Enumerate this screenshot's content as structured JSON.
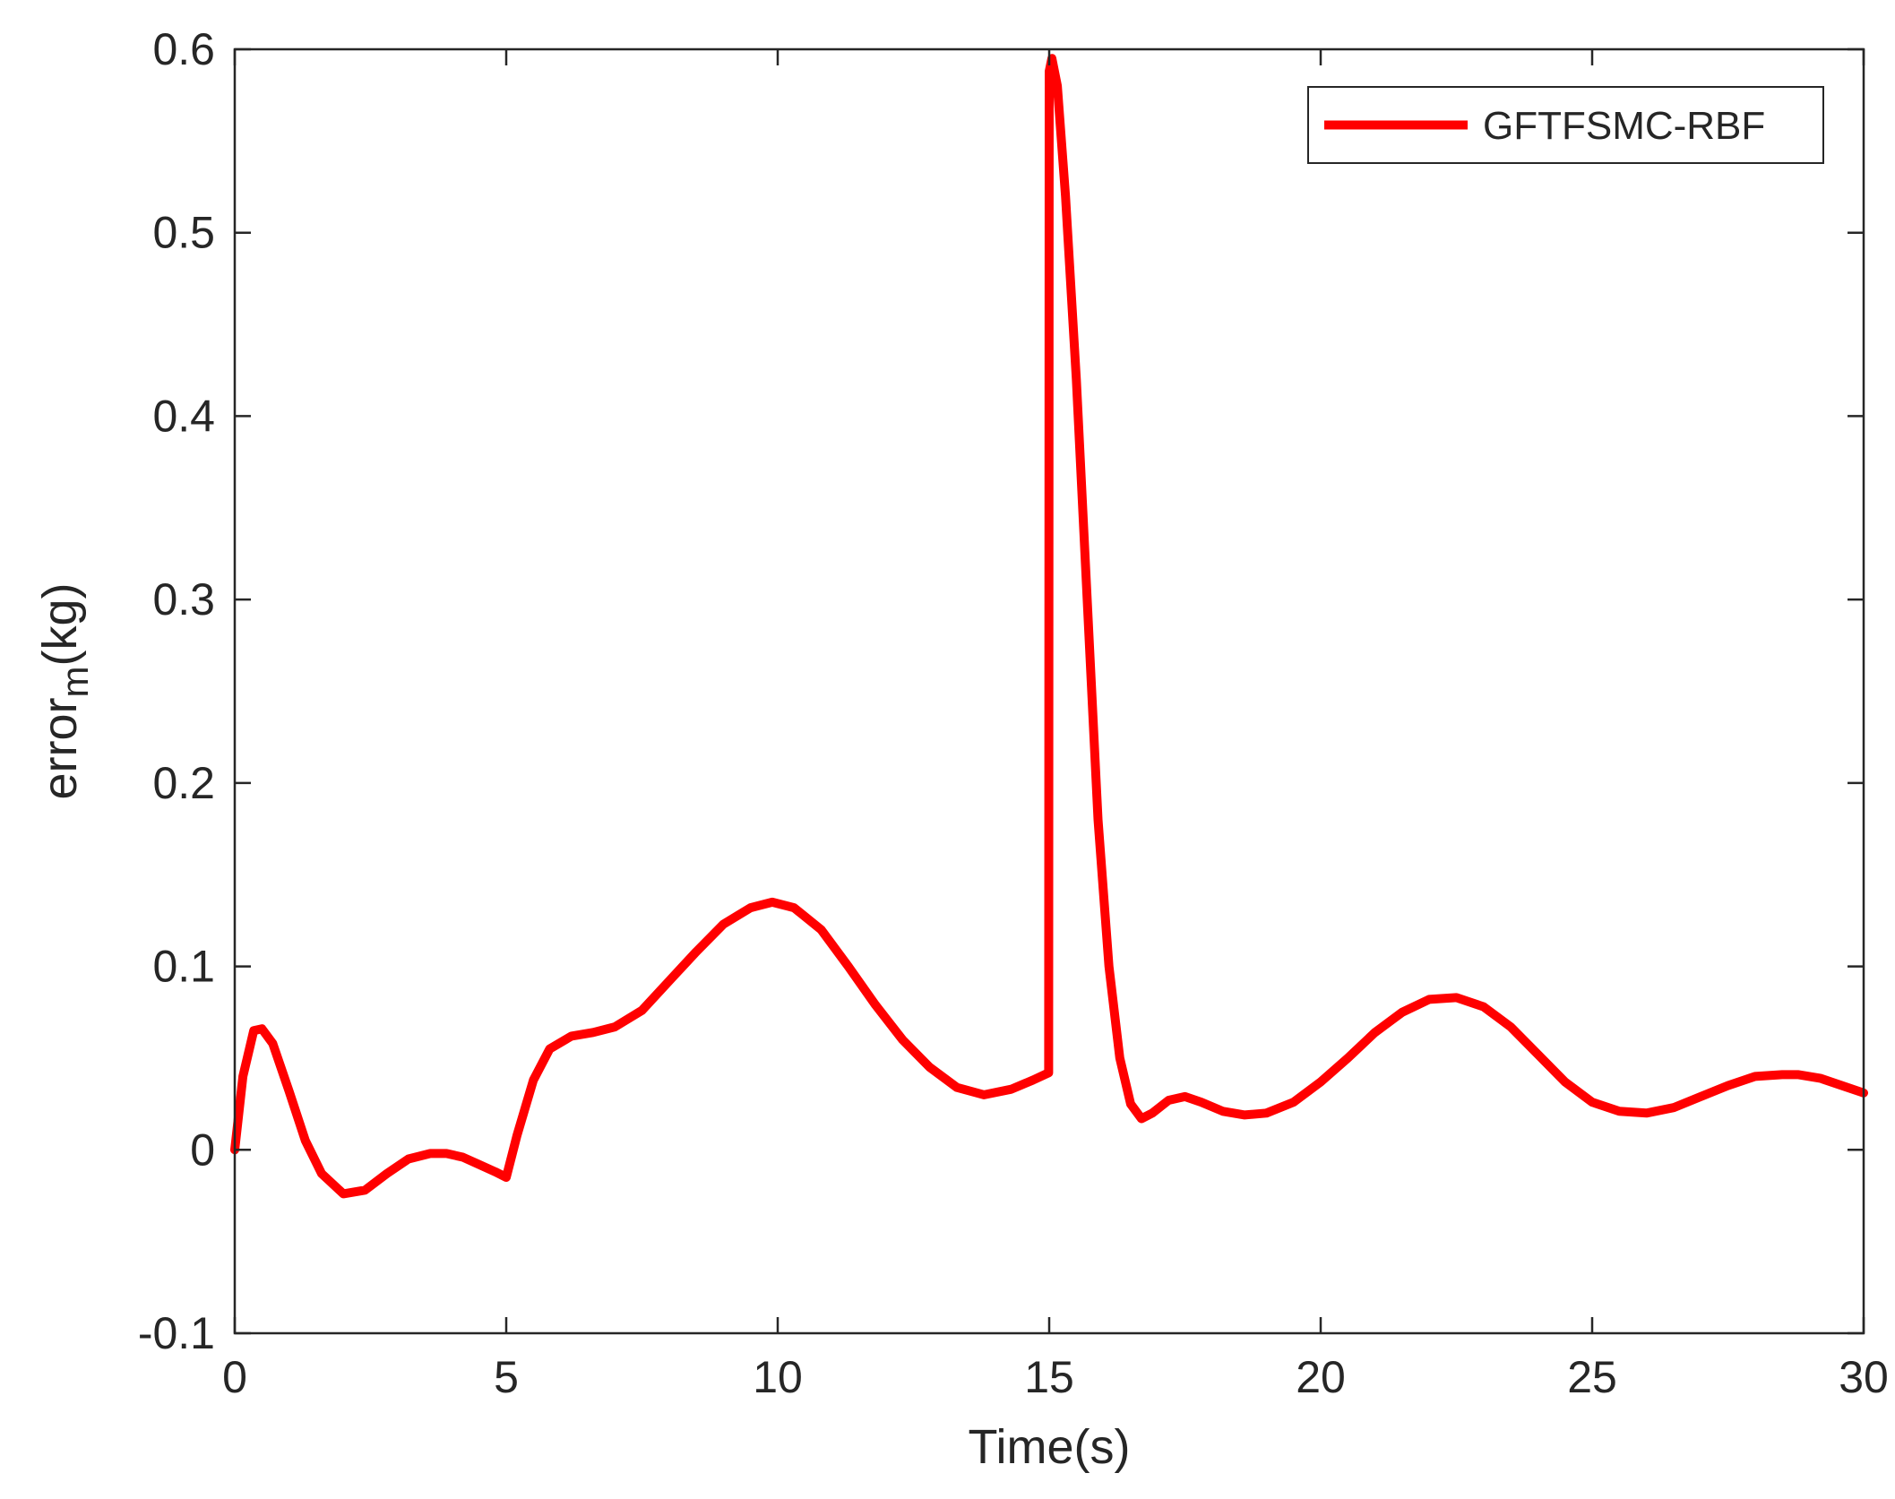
{
  "chart_data": {
    "type": "line",
    "title": "",
    "xlabel": "Time(s)",
    "ylabel": {
      "main": "error",
      "subscript": "m",
      "suffix": "(kg)"
    },
    "xlim": [
      0,
      30
    ],
    "ylim": [
      -0.1,
      0.6
    ],
    "xticks": [
      0,
      5,
      10,
      15,
      20,
      25,
      30
    ],
    "yticks": [
      -0.1,
      0,
      0.1,
      0.2,
      0.3,
      0.4,
      0.5,
      0.6
    ],
    "xtick_labels": [
      "0",
      "5",
      "10",
      "15",
      "20",
      "25",
      "30"
    ],
    "ytick_labels": [
      "-0.1",
      "0",
      "0.1",
      "0.2",
      "0.3",
      "0.4",
      "0.5",
      "0.6"
    ],
    "grid": false,
    "legend_position": "top-right",
    "series": [
      {
        "name": "GFTFSMC-RBF",
        "color": "#ff0000",
        "x": [
          0,
          0.15,
          0.35,
          0.5,
          0.7,
          1.0,
          1.3,
          1.6,
          2.0,
          2.4,
          2.8,
          3.2,
          3.6,
          3.9,
          4.2,
          4.5,
          4.8,
          5.0,
          5.2,
          5.5,
          5.8,
          6.2,
          6.6,
          7.0,
          7.5,
          8.0,
          8.5,
          9.0,
          9.5,
          9.9,
          10.3,
          10.8,
          11.3,
          11.8,
          12.3,
          12.8,
          13.3,
          13.8,
          14.3,
          14.7,
          14.99,
          15.0,
          15.05,
          15.15,
          15.3,
          15.5,
          15.7,
          15.9,
          16.1,
          16.3,
          16.5,
          16.7,
          16.9,
          17.2,
          17.5,
          17.8,
          18.2,
          18.6,
          19.0,
          19.5,
          20.0,
          20.5,
          21.0,
          21.5,
          22.0,
          22.5,
          23.0,
          23.5,
          24.0,
          24.5,
          25.0,
          25.5,
          26.0,
          26.5,
          27.0,
          27.5,
          28.0,
          28.5,
          28.8,
          29.2,
          29.6,
          30.0
        ],
        "y": [
          0.0,
          0.04,
          0.065,
          0.066,
          0.058,
          0.032,
          0.005,
          -0.013,
          -0.024,
          -0.022,
          -0.013,
          -0.005,
          -0.002,
          -0.002,
          -0.004,
          -0.008,
          -0.012,
          -0.015,
          0.008,
          0.038,
          0.055,
          0.062,
          0.064,
          0.067,
          0.076,
          0.092,
          0.108,
          0.123,
          0.132,
          0.135,
          0.132,
          0.12,
          0.1,
          0.079,
          0.06,
          0.045,
          0.034,
          0.03,
          0.033,
          0.038,
          0.042,
          0.588,
          0.595,
          0.58,
          0.52,
          0.42,
          0.3,
          0.18,
          0.1,
          0.05,
          0.025,
          0.017,
          0.02,
          0.027,
          0.029,
          0.026,
          0.021,
          0.019,
          0.02,
          0.026,
          0.037,
          0.05,
          0.064,
          0.075,
          0.082,
          0.083,
          0.078,
          0.067,
          0.052,
          0.037,
          0.026,
          0.021,
          0.02,
          0.023,
          0.029,
          0.035,
          0.04,
          0.041,
          0.041,
          0.039,
          0.035,
          0.031
        ]
      }
    ]
  }
}
